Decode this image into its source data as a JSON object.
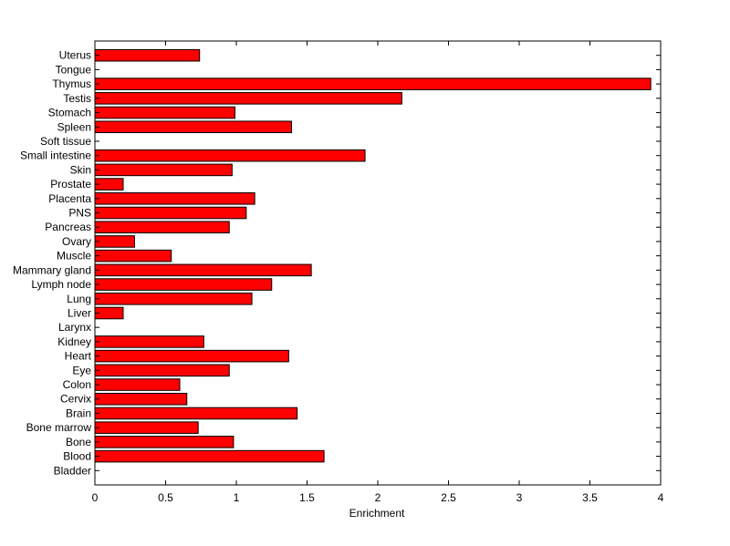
{
  "chart_data": {
    "type": "bar",
    "orientation": "horizontal",
    "title": "",
    "xlabel": "Enrichment",
    "ylabel": "",
    "xlim": [
      0,
      4
    ],
    "xticks": [
      "0",
      "0.5",
      "1",
      "1.5",
      "2",
      "2.5",
      "3",
      "3.5",
      "4"
    ],
    "grid": false,
    "bar_color": "#ff0000",
    "edge_color": "#000000",
    "categories": [
      "Uterus",
      "Tongue",
      "Thymus",
      "Testis",
      "Stomach",
      "Spleen",
      "Soft tissue",
      "Small intestine",
      "Skin",
      "Prostate",
      "Placenta",
      "PNS",
      "Pancreas",
      "Ovary",
      "Muscle",
      "Mammary gland",
      "Lymph node",
      "Lung",
      "Liver",
      "Larynx",
      "Kidney",
      "Heart",
      "Eye",
      "Colon",
      "Cervix",
      "Brain",
      "Bone marrow",
      "Bone",
      "Blood",
      "Bladder"
    ],
    "values": [
      0.74,
      0,
      3.93,
      2.17,
      0.99,
      1.39,
      0,
      1.91,
      0.97,
      0.2,
      1.13,
      1.07,
      0.95,
      0.28,
      0.54,
      1.53,
      1.25,
      1.11,
      0.2,
      0,
      0.77,
      1.37,
      0.95,
      0.6,
      0.65,
      1.43,
      0.73,
      0.98,
      1.62,
      0
    ]
  }
}
